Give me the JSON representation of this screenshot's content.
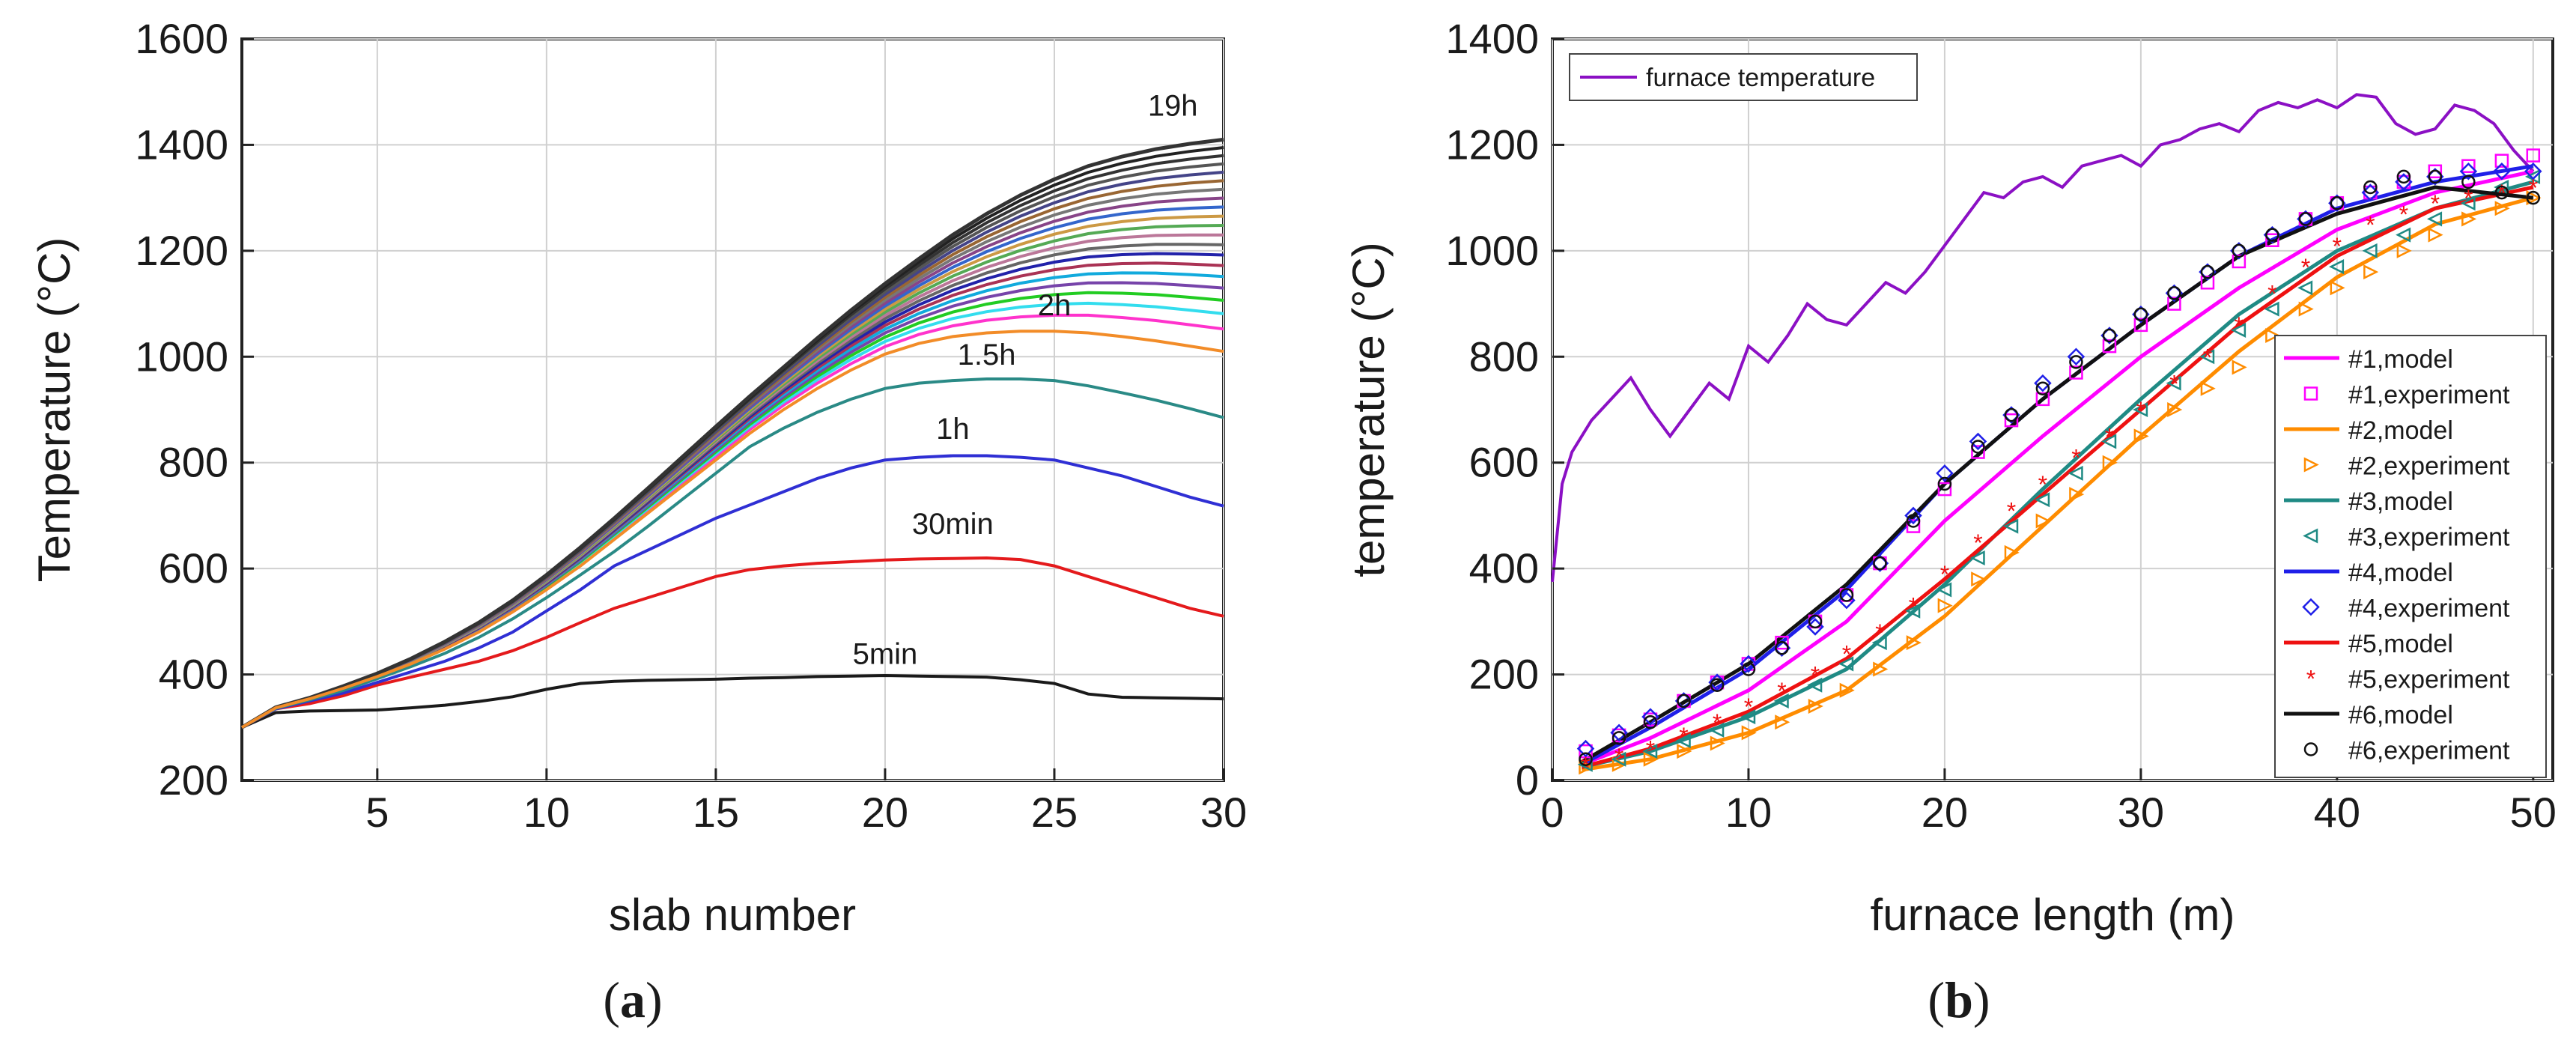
{
  "chart_data": [
    {
      "type": "line",
      "panel": "(a)",
      "xlabel": "slab number",
      "ylabel": "Temperature (°C)",
      "xlim": [
        1,
        30
      ],
      "ylim": [
        200,
        1600
      ],
      "xticks": [
        5,
        10,
        15,
        20,
        25,
        30
      ],
      "yticks": [
        200,
        400,
        600,
        800,
        1000,
        1200,
        1400,
        1600
      ],
      "grid": true,
      "x": [
        1,
        2,
        3,
        4,
        5,
        6,
        7,
        8,
        9,
        10,
        11,
        12,
        13,
        14,
        15,
        16,
        17,
        18,
        19,
        20,
        21,
        22,
        23,
        24,
        25,
        26,
        27,
        28,
        29,
        30
      ],
      "labeled_series": [
        {
          "name": "5min",
          "color": "#1a1a1a",
          "label_at": [
            20,
            420
          ],
          "values": [
            300,
            328,
            331,
            332,
            333,
            337,
            342,
            349,
            358,
            372,
            383,
            387,
            389,
            390,
            391,
            393,
            394,
            396,
            397,
            398,
            397,
            396,
            395,
            390,
            383,
            363,
            357,
            356,
            355,
            354
          ]
        },
        {
          "name": "30min",
          "color": "#e41a1c",
          "label_at": [
            22,
            665
          ],
          "values": [
            300,
            335,
            345,
            360,
            380,
            395,
            410,
            425,
            445,
            470,
            498,
            525,
            545,
            565,
            585,
            598,
            605,
            610,
            613,
            616,
            618,
            619,
            620,
            617,
            605,
            585,
            565,
            545,
            525,
            510
          ]
        },
        {
          "name": "1h",
          "color": "#2f2fd4",
          "label_at": [
            22,
            845
          ],
          "values": [
            300,
            335,
            350,
            365,
            385,
            405,
            425,
            450,
            480,
            520,
            560,
            605,
            635,
            665,
            695,
            720,
            745,
            770,
            790,
            805,
            810,
            813,
            813,
            810,
            805,
            790,
            775,
            755,
            735,
            718
          ]
        },
        {
          "name": "1.5h",
          "color": "#2a8a86",
          "label_at": [
            23,
            985
          ],
          "values": [
            300,
            336,
            352,
            370,
            392,
            415,
            440,
            470,
            505,
            545,
            588,
            632,
            680,
            730,
            780,
            830,
            865,
            895,
            920,
            940,
            950,
            955,
            958,
            958,
            955,
            945,
            932,
            918,
            902,
            885
          ]
        },
        {
          "name": "2h",
          "color": "#f28c28",
          "label_at": [
            25,
            1078
          ],
          "values": [
            300,
            337,
            354,
            374,
            396,
            420,
            448,
            480,
            518,
            560,
            605,
            655,
            705,
            755,
            805,
            855,
            900,
            940,
            975,
            1005,
            1025,
            1038,
            1045,
            1048,
            1048,
            1045,
            1038,
            1030,
            1020,
            1010
          ]
        }
      ],
      "unlabeled_series_colors": [
        "#ff33cc",
        "#33ddee",
        "#22cc22",
        "#7744aa",
        "#11aadd",
        "#aa3355",
        "#2222aa",
        "#666666",
        "#bb7799",
        "#55aa55",
        "#cc9944",
        "#3366cc",
        "#884488",
        "#777777",
        "#996633",
        "#444488",
        "#555555",
        "#333333",
        "#222222"
      ],
      "top_series": {
        "name": "19h",
        "color": "#333333",
        "label_at": [
          28.5,
          1455
        ],
        "values": [
          300,
          338,
          356,
          378,
          402,
          430,
          462,
          498,
          540,
          588,
          640,
          695,
          752,
          810,
          868,
          925,
          980,
          1035,
          1088,
          1138,
          1185,
          1230,
          1270,
          1305,
          1335,
          1360,
          1378,
          1392,
          1402,
          1410
        ]
      }
    },
    {
      "type": "line+scatter",
      "panel": "(b)",
      "xlabel": "furnace length (m)",
      "ylabel": "temperature (°C)",
      "xlim": [
        0,
        51
      ],
      "ylim": [
        0,
        1400
      ],
      "xticks": [
        0,
        10,
        20,
        30,
        40,
        50
      ],
      "yticks": [
        0,
        200,
        400,
        600,
        800,
        1000,
        1200,
        1400
      ],
      "grid": true,
      "furnace": {
        "name": "furnace temperature",
        "color": "#8b10c4",
        "x": [
          0,
          0.5,
          1,
          2,
          3,
          4,
          5,
          6,
          7,
          8,
          9,
          10,
          11,
          12,
          13,
          14,
          15,
          16,
          17,
          18,
          19,
          20,
          21,
          22,
          23,
          24,
          25,
          26,
          27,
          28,
          29,
          30,
          31,
          32,
          33,
          34,
          35,
          36,
          37,
          38,
          39,
          40,
          41,
          42,
          43,
          44,
          45,
          46,
          47,
          48,
          49,
          50
        ],
        "values": [
          375,
          560,
          620,
          680,
          720,
          760,
          700,
          650,
          700,
          750,
          720,
          820,
          790,
          840,
          900,
          870,
          860,
          900,
          940,
          920,
          960,
          1010,
          1060,
          1110,
          1100,
          1130,
          1140,
          1120,
          1160,
          1170,
          1180,
          1160,
          1200,
          1210,
          1230,
          1240,
          1225,
          1265,
          1280,
          1270,
          1285,
          1270,
          1295,
          1290,
          1240,
          1220,
          1230,
          1275,
          1265,
          1240,
          1190,
          1150
        ]
      },
      "model_x": [
        1.5,
        5,
        10,
        15,
        20,
        25,
        30,
        35,
        40,
        45,
        50
      ],
      "models": [
        {
          "name": "#1,model",
          "color": "#ff00ff",
          "values": [
            30,
            80,
            170,
            300,
            490,
            650,
            800,
            930,
            1040,
            1110,
            1150
          ]
        },
        {
          "name": "#2,model",
          "color": "#ff8c00",
          "values": [
            20,
            40,
            90,
            170,
            310,
            480,
            650,
            810,
            950,
            1050,
            1100
          ]
        },
        {
          "name": "#3,model",
          "color": "#1f8a84",
          "values": [
            25,
            55,
            120,
            210,
            370,
            550,
            720,
            880,
            1000,
            1080,
            1130
          ]
        },
        {
          "name": "#4,model",
          "color": "#1f1fe8",
          "values": [
            30,
            100,
            210,
            360,
            560,
            720,
            860,
            990,
            1080,
            1130,
            1160
          ]
        },
        {
          "name": "#5,model",
          "color": "#ee1111",
          "values": [
            25,
            60,
            130,
            230,
            380,
            540,
            700,
            860,
            990,
            1080,
            1120
          ]
        },
        {
          "name": "#6,model",
          "color": "#111111",
          "values": [
            35,
            110,
            220,
            370,
            560,
            720,
            860,
            990,
            1070,
            1120,
            1100
          ]
        }
      ],
      "experiment_x": [
        1.7,
        3.4,
        5,
        6.7,
        8.4,
        10,
        11.7,
        13.4,
        15,
        16.7,
        18.4,
        20,
        21.7,
        23.4,
        25,
        26.7,
        28.4,
        30,
        31.7,
        33.4,
        35,
        36.7,
        38.4,
        40,
        41.7,
        43.4,
        45,
        46.7,
        48.4,
        50
      ],
      "experiments": [
        {
          "name": "#1,experiment",
          "color": "#ff00ff",
          "marker": "square",
          "values": [
            55,
            85,
            115,
            150,
            185,
            220,
            260,
            300,
            350,
            410,
            480,
            550,
            620,
            680,
            720,
            770,
            820,
            860,
            900,
            940,
            980,
            1020,
            1060,
            1090,
            1110,
            1130,
            1150,
            1160,
            1170,
            1180
          ]
        },
        {
          "name": "#2,experiment",
          "color": "#ff8c00",
          "marker": "triangle-right",
          "values": [
            25,
            30,
            40,
            55,
            70,
            90,
            110,
            140,
            170,
            210,
            260,
            330,
            380,
            430,
            490,
            540,
            600,
            650,
            700,
            740,
            780,
            840,
            890,
            930,
            960,
            1000,
            1030,
            1060,
            1080,
            1100
          ]
        },
        {
          "name": "#3,experiment",
          "color": "#1f8a84",
          "marker": "triangle-left",
          "values": [
            30,
            40,
            55,
            75,
            95,
            120,
            150,
            180,
            220,
            260,
            320,
            360,
            420,
            480,
            530,
            580,
            640,
            700,
            750,
            800,
            850,
            890,
            930,
            970,
            1000,
            1030,
            1060,
            1090,
            1120,
            1140
          ]
        },
        {
          "name": "#4,experiment",
          "color": "#1f1fe8",
          "marker": "diamond",
          "values": [
            60,
            90,
            120,
            150,
            185,
            220,
            250,
            290,
            340,
            410,
            500,
            580,
            640,
            690,
            750,
            800,
            840,
            880,
            920,
            960,
            1000,
            1030,
            1060,
            1090,
            1110,
            1130,
            1140,
            1150,
            1150,
            1150
          ]
        },
        {
          "name": "#5,experiment",
          "color": "#ee1111",
          "marker": "star",
          "values": [
            30,
            45,
            60,
            85,
            110,
            140,
            170,
            200,
            240,
            280,
            330,
            390,
            450,
            510,
            560,
            610,
            650,
            700,
            750,
            800,
            860,
            920,
            970,
            1010,
            1050,
            1070,
            1090,
            1100,
            1110,
            1120
          ]
        },
        {
          "name": "#6,experiment",
          "color": "#111111",
          "marker": "circle",
          "values": [
            40,
            80,
            110,
            150,
            180,
            210,
            250,
            300,
            350,
            410,
            490,
            560,
            630,
            690,
            740,
            790,
            840,
            880,
            920,
            960,
            1000,
            1030,
            1060,
            1090,
            1120,
            1140,
            1140,
            1130,
            1110,
            1100
          ]
        }
      ],
      "legend": [
        "#1,model",
        "#1,experiment",
        "#2,model",
        "#2,experiment",
        "#3,model",
        "#3,experiment",
        "#4,model",
        "#4,experiment",
        "#5,model",
        "#5,experiment",
        "#6,model",
        "#6,experiment"
      ]
    }
  ],
  "panel_labels": {
    "a_open": "(",
    "a_letter": "a",
    "a_close": ")",
    "b_open": "(",
    "b_letter": "b",
    "b_close": ")"
  }
}
